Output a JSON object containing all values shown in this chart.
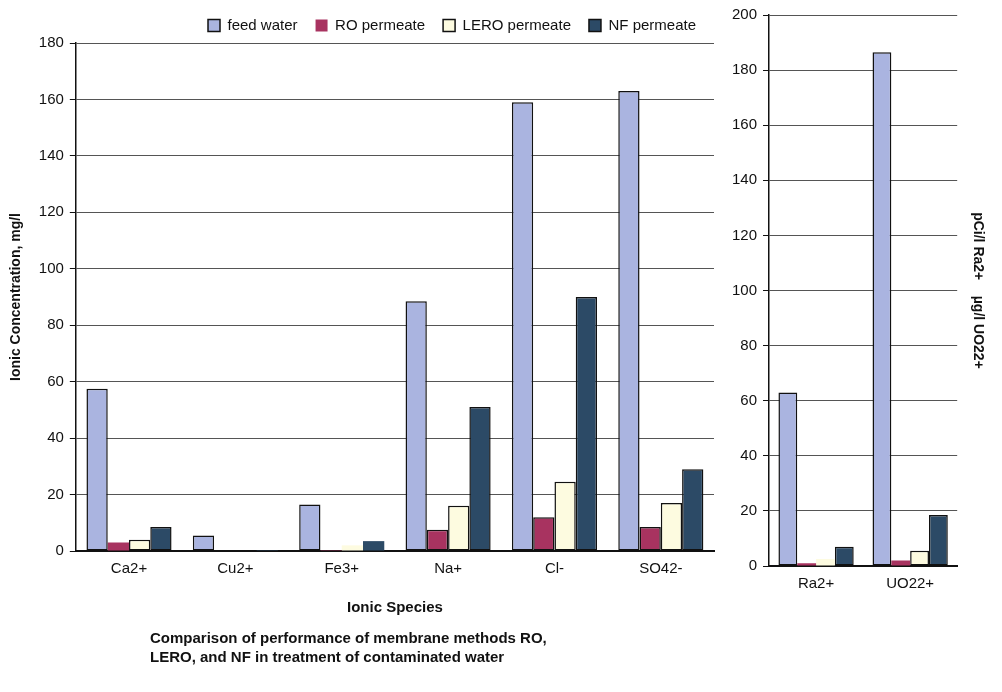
{
  "chart_data": [
    {
      "type": "bar",
      "xlabel": "Ionic Species",
      "ylabel": "Ionic Concentration, mg/l",
      "categories": [
        "Ca2+",
        "Cu2+",
        "Fe3+",
        "Na+",
        "Cl-",
        "SO42-"
      ],
      "series": [
        {
          "name": "feed water",
          "color": "#aab4e0",
          "values": [
            57.5,
            5.5,
            16.5,
            88.5,
            159,
            163
          ]
        },
        {
          "name": "RO permeate",
          "color": "#a83360",
          "values": [
            3,
            null,
            0.3,
            7.5,
            12,
            8.5
          ]
        },
        {
          "name": "LERO permeate",
          "color": "#fdfbe0",
          "values": [
            4,
            null,
            2,
            16,
            24.5,
            17
          ]
        },
        {
          "name": "NF permeate",
          "color": "#2c4a66",
          "values": [
            8.5,
            0.3,
            3.5,
            51,
            90,
            29
          ]
        }
      ],
      "ylim": [
        0,
        180
      ],
      "yticks": [
        0,
        20,
        40,
        60,
        80,
        100,
        120,
        140,
        160,
        180
      ],
      "grid": "y",
      "legend": "top",
      "annotations": [
        "Comparison of performance of membrane methods RO, LERO, and NF in treatment of contaminated water"
      ]
    },
    {
      "type": "bar",
      "y2label": "pCi/l Ra2+    µg/l UO22+",
      "categories": [
        "Ra2+",
        "UO22+"
      ],
      "series": [
        {
          "color": "#aab4e0",
          "values": [
            63,
            186.5
          ]
        },
        {
          "color": "#a83360",
          "values": [
            1,
            2
          ]
        },
        {
          "color": "#fdfbe0",
          "values": [
            2.5,
            5.5
          ]
        },
        {
          "color": "#2c4a66",
          "values": [
            7,
            18.5
          ]
        }
      ],
      "ylim": [
        0,
        200
      ],
      "yticks": [
        0,
        20,
        40,
        60,
        80,
        100,
        120,
        140,
        160,
        180,
        200
      ],
      "grid": "y"
    }
  ]
}
